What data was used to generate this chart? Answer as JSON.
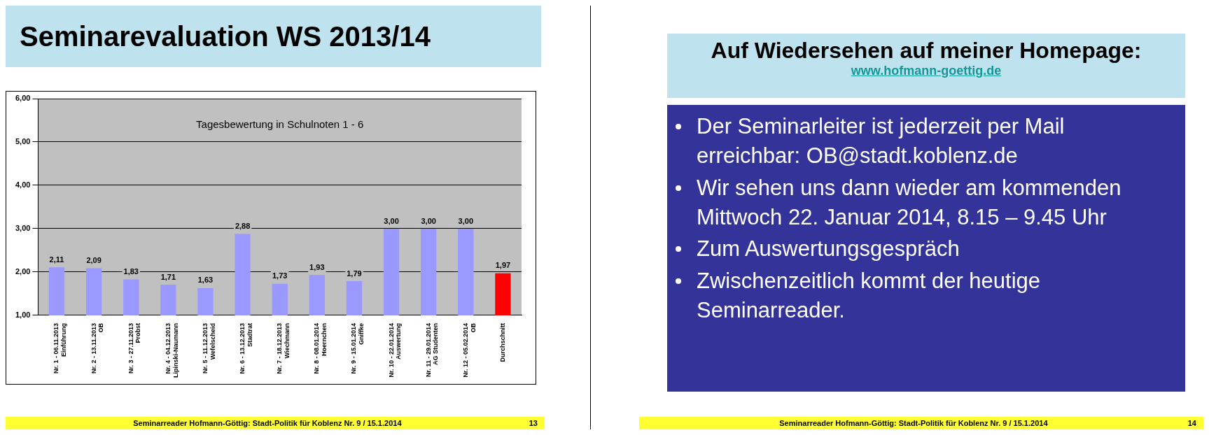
{
  "chart_data": [
    {
      "type": "bar",
      "title": "Seminarevaluation WS 2013/14",
      "subtitle": "Tagesbewertung in Schulnoten 1 - 6",
      "categories": [
        "Nr. 1 - 06.11.2013\nEinführung",
        "Nr. 2 - 13.11.2013\nOB",
        "Nr. 3 - 27.11.2013\nProbst",
        "Nr. 4 - 04.12.2013\nLipinski-Naumann",
        "Nr. 5 - 11.12.2013\nWefelscheid",
        "Nr. 6 - 13.12.2013\nStadtrat",
        "Nr. 7 - 18.12.2013\nWiechmann",
        "Nr. 8 - 08.01.2014\nHoernchen",
        "Nr. 9 - 15.01.2014\nGniffke",
        "Nr. 10 - 22.01.2014\nAuswertung",
        "Nr. 11 - 29.01.2014\nAG Studenten",
        "Nr. 12 - 05.02.2014\nOB",
        "Durchschnitt"
      ],
      "values": [
        2.11,
        2.09,
        1.83,
        1.71,
        1.63,
        2.88,
        1.73,
        1.93,
        1.79,
        3.0,
        3.0,
        3.0,
        1.97
      ],
      "value_labels": [
        "2,11",
        "2,09",
        "1,83",
        "1,71",
        "1,63",
        "2,88",
        "1,73",
        "1,93",
        "1,79",
        "3,00",
        "3,00",
        "3,00",
        "1,97"
      ],
      "colors": [
        "#9999ff",
        "#9999ff",
        "#9999ff",
        "#9999ff",
        "#9999ff",
        "#9999ff",
        "#9999ff",
        "#9999ff",
        "#9999ff",
        "#9999ff",
        "#9999ff",
        "#9999ff",
        "#ff0000"
      ],
      "ylim": [
        1,
        6
      ],
      "yticks": [
        {
          "value": 1,
          "label": "1,00"
        },
        {
          "value": 2,
          "label": "2,00"
        },
        {
          "value": 3,
          "label": "3,00"
        },
        {
          "value": 4,
          "label": "4,00"
        },
        {
          "value": 5,
          "label": "5,00"
        },
        {
          "value": 6,
          "label": "6,00"
        }
      ],
      "grid": "y",
      "legend": false,
      "annotations": [
        "Seminarreader Hofmann-Göttig: Stadt-Politik für Koblenz Nr. 9 / 15.1.2014",
        "13"
      ]
    },
    {
      "type": "other",
      "title": "Auf Wiedersehen auf meiner Homepage:",
      "subtitle": "www.hofmann-goettig.de",
      "annotations": [
        "Der Seminarleiter ist jederzeit per Mail erreichbar: OB@stadt.koblenz.de",
        "Wir sehen uns dann wieder am kommenden Mittwoch 22. Januar 2014, 8.15 – 9.45 Uhr",
        "Zum Auswertungsgespräch",
        "Zwischenzeitlich kommt der heutige Seminarreader.",
        "Seminarreader Hofmann-Göttig: Stadt-Politik für Koblenz Nr. 9 / 15.1.2014",
        "14"
      ]
    }
  ]
}
